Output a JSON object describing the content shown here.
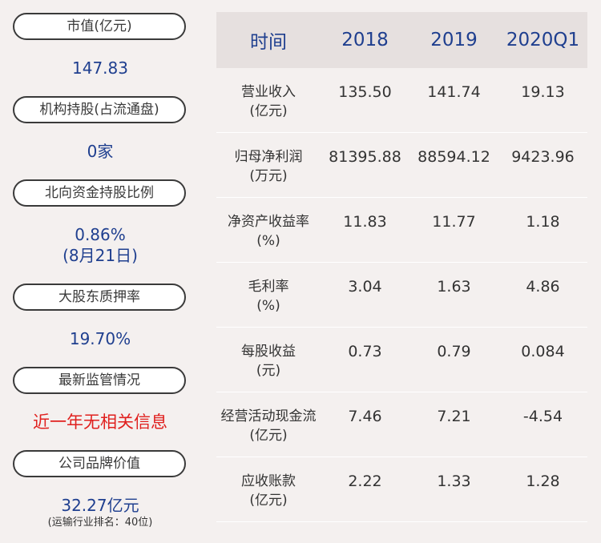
{
  "left_panel": {
    "items": [
      {
        "label": "市值(亿元)",
        "value": "147.83"
      },
      {
        "label": "机构持股(占流通盘)",
        "value": "0家"
      },
      {
        "label": "北向资金持股比例",
        "value": "0.86%",
        "value2": "(8月21日)"
      },
      {
        "label": "大股东质押率",
        "value": "19.70%"
      },
      {
        "label": "最新监管情况",
        "value": "近一年无相关信息"
      },
      {
        "label": "公司品牌价值",
        "value": "32.27亿元",
        "value2": "(运输行业排名：40位)"
      }
    ]
  },
  "table": {
    "headers": [
      "时间",
      "2018",
      "2019",
      "2020Q1"
    ],
    "rows": [
      {
        "label": "营业收入",
        "unit": "(亿元)",
        "values": [
          "135.50",
          "141.74",
          "19.13"
        ]
      },
      {
        "label": "归母净利润",
        "unit": "(万元)",
        "values": [
          "81395.88",
          "88594.12",
          "9423.96"
        ]
      },
      {
        "label": "净资产收益率",
        "unit": "(%)",
        "values": [
          "11.83",
          "11.77",
          "1.18"
        ]
      },
      {
        "label": "毛利率",
        "unit": "(%)",
        "values": [
          "3.04",
          "1.63",
          "4.86"
        ]
      },
      {
        "label": "每股收益",
        "unit": "(元)",
        "values": [
          "0.73",
          "0.79",
          "0.084"
        ]
      },
      {
        "label": "经营活动现金流",
        "unit": "(亿元)",
        "values": [
          "7.46",
          "7.21",
          "-4.54"
        ]
      },
      {
        "label": "应收账款",
        "unit": "(亿元)",
        "values": [
          "2.22",
          "1.33",
          "1.28"
        ]
      }
    ]
  },
  "colors": {
    "background": "#f4f0ef",
    "value_blue": "#1f3f8f",
    "alert_red": "#e0201e",
    "header_bg": "#e6e0df"
  }
}
